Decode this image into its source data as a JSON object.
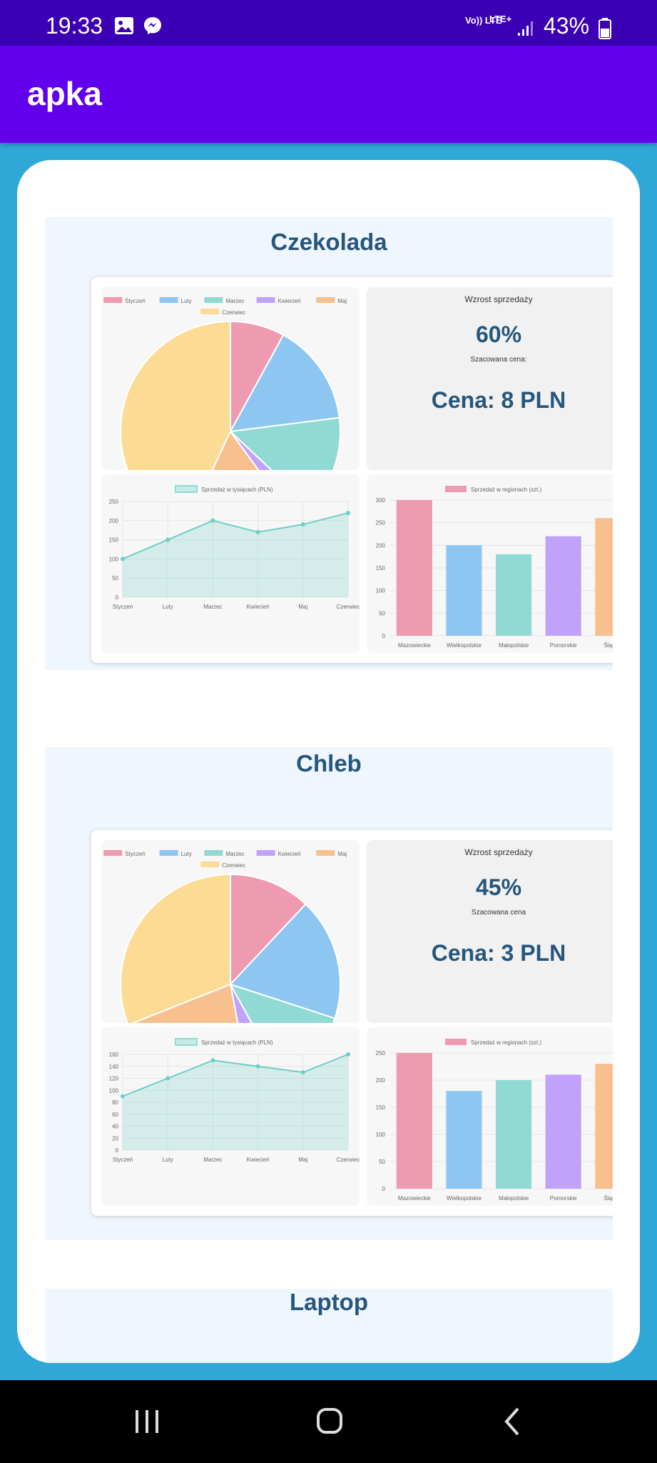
{
  "status_bar": {
    "time": "19:33",
    "network": "Vo)) LTE",
    "lte": "LTE+",
    "battery": "43%",
    "icons": [
      "gallery-icon",
      "messenger-icon",
      "signal-icon",
      "battery-icon"
    ]
  },
  "app_bar": {
    "title": "apka"
  },
  "colors": {
    "status_bar": "#3b00b3",
    "app_bar": "#6200ee",
    "background": "#2fa8d8",
    "title": "#25567e",
    "palette": [
      "#ee9ab0",
      "#8ec6f2",
      "#91d9d4",
      "#c1a2fb",
      "#f7c08e",
      "#fcdc95"
    ]
  },
  "products": [
    {
      "name": "Czekolada",
      "growth_label": "Wzrost sprzedaży",
      "growth_value": "60%",
      "price_label": "Szacowana cena:",
      "price_value": "Cena: 8 PLN",
      "charts": {
        "pie": {
          "type": "pie",
          "legend": [
            "Styczeń",
            "Luty",
            "Marzec",
            "Kwiecień",
            "Maj",
            "Czerwiec"
          ],
          "values": [
            8,
            15,
            14,
            3,
            17,
            43
          ]
        },
        "line": {
          "type": "area",
          "legend": "Sprzedaż w tysiącach (PLN)",
          "categories": [
            "Styczeń",
            "Luty",
            "Marzec",
            "Kwiecień",
            "Maj",
            "Czerwiec"
          ],
          "values": [
            100,
            150,
            200,
            170,
            190,
            220
          ],
          "yticks": [
            0,
            50,
            100,
            150,
            200,
            250
          ],
          "ylim": [
            0,
            250
          ]
        },
        "bar": {
          "type": "bar",
          "legend": "Sprzedaż w regionach (szt.)",
          "categories": [
            "Mazowieckie",
            "Wielkopolskie",
            "Małopolskie",
            "Pomorskie",
            "Śląskie"
          ],
          "values": [
            300,
            200,
            180,
            220,
            260
          ],
          "yticks": [
            0,
            50,
            100,
            150,
            200,
            250,
            300
          ],
          "ylim": [
            0,
            300
          ]
        }
      }
    },
    {
      "name": "Chleb",
      "growth_label": "Wzrost sprzedaży",
      "growth_value": "45%",
      "price_label": "Szacowana cena",
      "price_value": "Cena: 3 PLN",
      "charts": {
        "pie": {
          "type": "pie",
          "legend": [
            "Styczeń",
            "Luty",
            "Marzec",
            "Kwiecień",
            "Maj",
            "Czerwiec"
          ],
          "values": [
            12,
            18,
            12,
            5,
            22,
            31
          ]
        },
        "line": {
          "type": "area",
          "legend": "Sprzedaż w tysiącach (PLN)",
          "categories": [
            "Styczeń",
            "Luty",
            "Marzec",
            "Kwiecień",
            "Maj",
            "Czerwiec"
          ],
          "values": [
            90,
            120,
            150,
            140,
            130,
            160
          ],
          "yticks": [
            0,
            20,
            40,
            60,
            80,
            100,
            120,
            140,
            160
          ],
          "ylim": [
            0,
            160
          ]
        },
        "bar": {
          "type": "bar",
          "legend": "Sprzedaż w regionach (szt.)",
          "categories": [
            "Mazowieckie",
            "Wielkopolskie",
            "Małopolskie",
            "Pomorskie",
            "Śląskie"
          ],
          "values": [
            250,
            180,
            200,
            210,
            230
          ],
          "yticks": [
            0,
            50,
            100,
            150,
            200,
            250
          ],
          "ylim": [
            0,
            250
          ]
        }
      }
    },
    {
      "name": "Laptop"
    }
  ],
  "chart_data": [
    {
      "type": "pie",
      "legend": [
        "Styczeń",
        "Luty",
        "Marzec",
        "Kwiecień",
        "Maj",
        "Czerwiec"
      ],
      "values": [
        8,
        15,
        14,
        3,
        17,
        43
      ]
    },
    {
      "type": "area",
      "legend": "Sprzedaż w tysiącach (PLN)",
      "x": [
        "Styczeń",
        "Luty",
        "Marzec",
        "Kwiecień",
        "Maj",
        "Czerwiec"
      ],
      "values": [
        100,
        150,
        200,
        170,
        190,
        220
      ],
      "ylim": [
        0,
        250
      ]
    },
    {
      "type": "bar",
      "legend": "Sprzedaż w regionach (szt.)",
      "categories": [
        "Mazowieckie",
        "Wielkopolskie",
        "Małopolskie",
        "Pomorskie",
        "Śląskie"
      ],
      "values": [
        300,
        200,
        180,
        220,
        260
      ],
      "ylim": [
        0,
        300
      ]
    },
    {
      "type": "pie",
      "legend": [
        "Styczeń",
        "Luty",
        "Marzec",
        "Kwiecień",
        "Maj",
        "Czerwiec"
      ],
      "values": [
        12,
        18,
        12,
        5,
        22,
        31
      ]
    },
    {
      "type": "area",
      "legend": "Sprzedaż w tysiącach (PLN)",
      "x": [
        "Styczeń",
        "Luty",
        "Marzec",
        "Kwiecień",
        "Maj",
        "Czerwiec"
      ],
      "values": [
        90,
        120,
        150,
        140,
        130,
        160
      ],
      "ylim": [
        0,
        160
      ]
    },
    {
      "type": "bar",
      "legend": "Sprzedaż w regionach (szt.)",
      "categories": [
        "Mazowieckie",
        "Wielkopolskie",
        "Małopolskie",
        "Pomorskie",
        "Śląskie"
      ],
      "values": [
        250,
        180,
        200,
        210,
        230
      ],
      "ylim": [
        0,
        250
      ]
    }
  ],
  "nav_bar": {
    "icons": [
      "recent-apps-icon",
      "home-icon",
      "back-icon"
    ]
  }
}
